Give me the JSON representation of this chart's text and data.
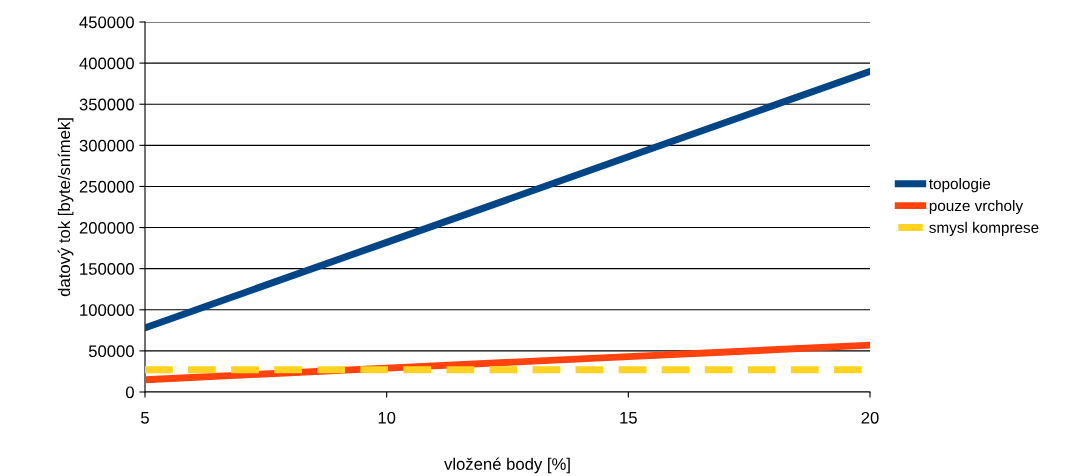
{
  "chart_data": {
    "type": "line",
    "xlabel": "vložené body [%]",
    "ylabel": "datový tok [byte/snímek]",
    "x": [
      5,
      10,
      15,
      20
    ],
    "series": [
      {
        "name": "topologie",
        "color": "#004586",
        "values": [
          78000,
          182000,
          286000,
          390000
        ],
        "line_style": "solid"
      },
      {
        "name": "pouze vrcholy",
        "color": "#ff420e",
        "values": [
          15000,
          29000,
          43000,
          57000
        ],
        "line_style": "solid"
      },
      {
        "name": "smysl komprese",
        "color": "#ffd320",
        "values": [
          27000,
          27000,
          27000,
          27000
        ],
        "line_style": "dashed"
      }
    ],
    "xlim": [
      5,
      20
    ],
    "xticks": [
      5,
      10,
      15,
      20
    ],
    "ylim": [
      0,
      450000
    ],
    "yticks": [
      0,
      50000,
      100000,
      150000,
      200000,
      250000,
      300000,
      350000,
      400000,
      450000
    ],
    "grid": "y",
    "legend": "right",
    "marker": "none"
  }
}
